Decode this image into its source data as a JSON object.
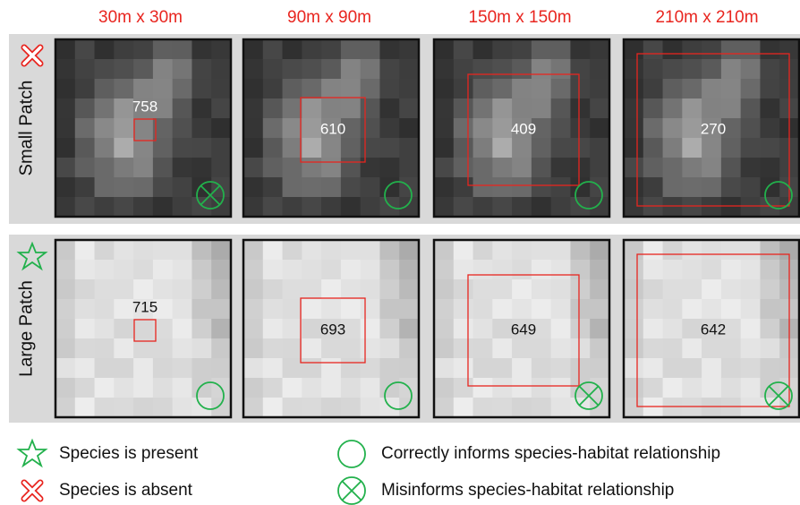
{
  "columns": [
    "30m x 30m",
    "90m x 90m",
    "150m x 150m",
    "210m x 210m"
  ],
  "rows": [
    {
      "label": "Small Patch",
      "values": [
        758,
        610,
        409,
        270
      ]
    },
    {
      "label": "Large Patch",
      "values": [
        715,
        693,
        649,
        642
      ]
    }
  ],
  "legend": [
    "Species is present",
    "Species is absent",
    "Correctly informs species-habitat relationship",
    "Misinforms species-habitat relationship"
  ]
}
